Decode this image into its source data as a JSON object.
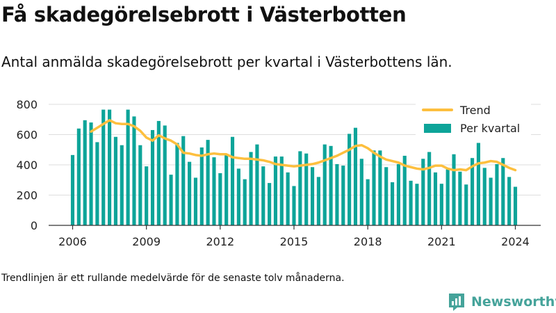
{
  "title": "Få skadegörelsebrott i Västerbotten",
  "subtitle": "Antal anmälda skadegörelsebrott per kvartal i Västerbottens län.",
  "footnote": "Trendlinjen är ett rullande medelvärde för de senaste tolv månaderna.",
  "brand": {
    "name": "Newsworthy",
    "color": "#45a39a",
    "logo_icon": "newsworthy-logo-icon"
  },
  "colors": {
    "bar": "#0da499",
    "trend": "#fdbf3e",
    "grid": "#dddddd",
    "axis": "#333333"
  },
  "chart_data": {
    "type": "bar",
    "title": "Få skadegörelsebrott i Västerbotten",
    "subtitle": "Antal anmälda skadegörelsebrott per kvartal i Västerbottens län.",
    "xlabel": "",
    "ylabel": "",
    "ylim": [
      0,
      800
    ],
    "yticks": [
      0,
      200,
      400,
      600,
      800
    ],
    "xticks": [
      "2006",
      "2009",
      "2012",
      "2015",
      "2018",
      "2021",
      "2024"
    ],
    "grid": true,
    "legend": {
      "position": "top-right",
      "entries": [
        "Trend",
        "Per kvartal"
      ]
    },
    "categories": [
      "2006 Q1",
      "2006 Q2",
      "2006 Q3",
      "2006 Q4",
      "2007 Q1",
      "2007 Q2",
      "2007 Q3",
      "2007 Q4",
      "2008 Q1",
      "2008 Q2",
      "2008 Q3",
      "2008 Q4",
      "2009 Q1",
      "2009 Q2",
      "2009 Q3",
      "2009 Q4",
      "2010 Q1",
      "2010 Q2",
      "2010 Q3",
      "2010 Q4",
      "2011 Q1",
      "2011 Q2",
      "2011 Q3",
      "2011 Q4",
      "2012 Q1",
      "2012 Q2",
      "2012 Q3",
      "2012 Q4",
      "2013 Q1",
      "2013 Q2",
      "2013 Q3",
      "2013 Q4",
      "2014 Q1",
      "2014 Q2",
      "2014 Q3",
      "2014 Q4",
      "2015 Q1",
      "2015 Q2",
      "2015 Q3",
      "2015 Q4",
      "2016 Q1",
      "2016 Q2",
      "2016 Q3",
      "2016 Q4",
      "2017 Q1",
      "2017 Q2",
      "2017 Q3",
      "2017 Q4",
      "2018 Q1",
      "2018 Q2",
      "2018 Q3",
      "2018 Q4",
      "2019 Q1",
      "2019 Q2",
      "2019 Q3",
      "2019 Q4",
      "2020 Q1",
      "2020 Q2",
      "2020 Q3",
      "2020 Q4",
      "2021 Q1",
      "2021 Q2",
      "2021 Q3",
      "2021 Q4",
      "2022 Q1",
      "2022 Q2",
      "2022 Q3",
      "2022 Q4",
      "2023 Q1",
      "2023 Q2",
      "2023 Q3",
      "2023 Q4",
      "2024 Q1"
    ],
    "series": [
      {
        "name": "Per kvartal",
        "type": "bar",
        "values": [
          465,
          640,
          695,
          680,
          550,
          765,
          765,
          585,
          530,
          765,
          720,
          530,
          390,
          630,
          690,
          660,
          335,
          545,
          590,
          420,
          315,
          515,
          565,
          450,
          345,
          470,
          585,
          375,
          305,
          485,
          535,
          390,
          280,
          455,
          455,
          350,
          260,
          490,
          475,
          385,
          320,
          535,
          525,
          405,
          395,
          605,
          645,
          440,
          305,
          495,
          495,
          385,
          285,
          405,
          460,
          295,
          275,
          440,
          485,
          350,
          275,
          370,
          470,
          355,
          270,
          445,
          545,
          380,
          315,
          405,
          445,
          320,
          255
        ]
      },
      {
        "name": "Trend",
        "type": "line",
        "values": [
          null,
          null,
          null,
          620,
          645,
          670,
          695,
          675,
          670,
          670,
          655,
          625,
          580,
          560,
          595,
          575,
          560,
          535,
          480,
          475,
          465,
          460,
          470,
          475,
          470,
          470,
          450,
          445,
          440,
          440,
          435,
          430,
          420,
          405,
          400,
          395,
          390,
          395,
          400,
          405,
          415,
          430,
          445,
          460,
          480,
          500,
          525,
          530,
          510,
          480,
          455,
          435,
          425,
          415,
          395,
          385,
          375,
          370,
          380,
          395,
          395,
          375,
          365,
          370,
          365,
          390,
          410,
          415,
          425,
          420,
          400,
          380,
          365
        ]
      }
    ]
  }
}
